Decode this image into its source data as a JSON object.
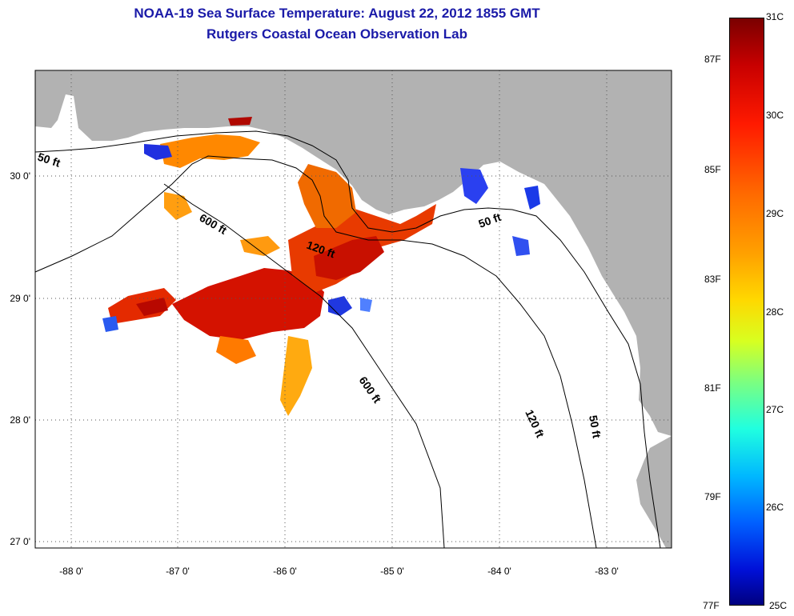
{
  "title": {
    "line1": "NOAA-19 Sea Surface Temperature:  August 22, 2012 1855 GMT",
    "line2": "Rutgers Coastal Ocean Observation Lab"
  },
  "map": {
    "lon_ticks": [
      "-88 0'",
      "-87 0'",
      "-86 0'",
      "-85 0'",
      "-84 0'",
      "-83 0'"
    ],
    "lat_ticks": [
      "30 0'",
      "29 0'",
      "28 0'",
      "27 0'"
    ],
    "contour_labels": [
      "50 ft",
      "600 ft",
      "120 ft",
      "600 ft",
      "50 ft",
      "120 ft",
      "50 ft"
    ],
    "colors": {
      "land": "#b2b2b2",
      "ocean": "#ffffff",
      "title": "#1a1aa8"
    }
  },
  "colorbar": {
    "celsius": [
      "31C",
      "30C",
      "29C",
      "28C",
      "27C",
      "26C",
      "25C"
    ],
    "fahrenheit": [
      "87F",
      "85F",
      "83F",
      "81F",
      "79F",
      "77F"
    ]
  }
}
